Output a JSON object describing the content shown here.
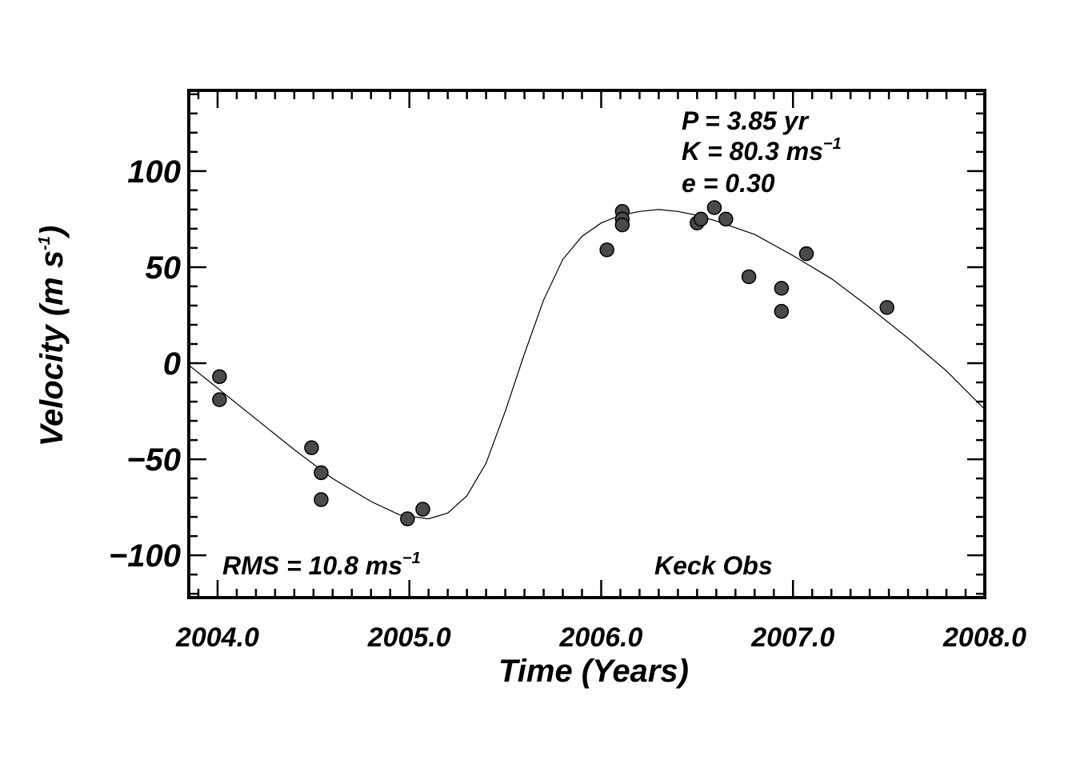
{
  "chart_data": {
    "type": "scatter",
    "xlabel": "Time  (Years)",
    "ylabel": "Velocity  (m s",
    "ylabel_sup": "-1",
    "ylabel_close": ")",
    "xlim": [
      2003.85,
      2008.0
    ],
    "ylim": [
      -122,
      142
    ],
    "x_ticks": [
      2004.0,
      2005.0,
      2006.0,
      2007.0,
      2008.0
    ],
    "x_tick_labels": [
      "2004.0",
      "2005.0",
      "2006.0",
      "2007.0",
      "2008.0"
    ],
    "y_ticks": [
      -100,
      -50,
      0,
      50,
      100
    ],
    "y_tick_labels": [
      "−100",
      "−50",
      "0",
      "50",
      "100"
    ],
    "grid": false,
    "annotations": {
      "period": "P = 3.85 yr",
      "amplitude": "K = 80.3 ms",
      "amplitude_sup": "−1",
      "eccentricity": "e = 0.30",
      "rms": "RMS = 10.8 ms",
      "rms_sup": "−1",
      "observatory": "Keck Obs"
    },
    "points": [
      {
        "x": 2004.01,
        "y": -7
      },
      {
        "x": 2004.01,
        "y": -19
      },
      {
        "x": 2004.49,
        "y": -44
      },
      {
        "x": 2004.54,
        "y": -57
      },
      {
        "x": 2004.54,
        "y": -71
      },
      {
        "x": 2004.99,
        "y": -81
      },
      {
        "x": 2005.07,
        "y": -76
      },
      {
        "x": 2006.03,
        "y": 59
      },
      {
        "x": 2006.11,
        "y": 79
      },
      {
        "x": 2006.11,
        "y": 75
      },
      {
        "x": 2006.11,
        "y": 72
      },
      {
        "x": 2006.5,
        "y": 73
      },
      {
        "x": 2006.52,
        "y": 75
      },
      {
        "x": 2006.59,
        "y": 81
      },
      {
        "x": 2006.65,
        "y": 75
      },
      {
        "x": 2006.77,
        "y": 45
      },
      {
        "x": 2006.94,
        "y": 39
      },
      {
        "x": 2006.94,
        "y": 27
      },
      {
        "x": 2007.07,
        "y": 57
      },
      {
        "x": 2007.49,
        "y": 29
      }
    ],
    "fit_curve": [
      [
        2003.85,
        -1
      ],
      [
        2004.0,
        -13
      ],
      [
        2004.2,
        -29
      ],
      [
        2004.4,
        -45
      ],
      [
        2004.6,
        -60
      ],
      [
        2004.8,
        -72
      ],
      [
        2004.95,
        -79
      ],
      [
        2005.1,
        -81
      ],
      [
        2005.2,
        -78
      ],
      [
        2005.3,
        -69
      ],
      [
        2005.4,
        -52
      ],
      [
        2005.5,
        -25
      ],
      [
        2005.6,
        5
      ],
      [
        2005.7,
        33
      ],
      [
        2005.8,
        54
      ],
      [
        2005.9,
        66
      ],
      [
        2006.0,
        73
      ],
      [
        2006.1,
        77
      ],
      [
        2006.2,
        79
      ],
      [
        2006.3,
        80
      ],
      [
        2006.4,
        79
      ],
      [
        2006.5,
        77
      ],
      [
        2006.6,
        74
      ],
      [
        2006.8,
        67
      ],
      [
        2007.0,
        56
      ],
      [
        2007.2,
        44
      ],
      [
        2007.4,
        29
      ],
      [
        2007.6,
        13
      ],
      [
        2007.8,
        -4
      ],
      [
        2008.0,
        -24
      ]
    ],
    "marker_color": "#4a4a4a",
    "curve_color": "#000000"
  }
}
